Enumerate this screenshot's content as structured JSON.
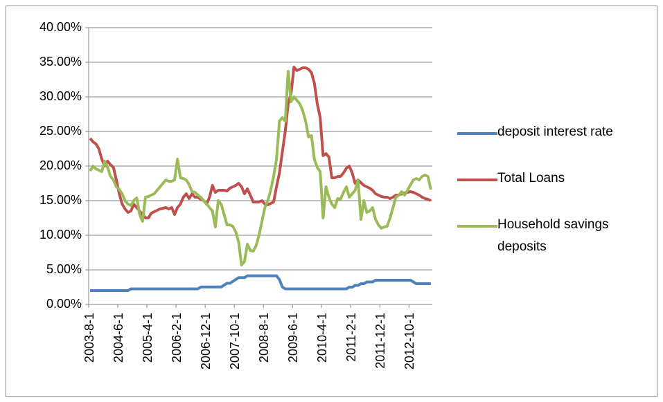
{
  "chart_data": {
    "type": "line",
    "categories": [
      "2003-8-1",
      null,
      null,
      null,
      null,
      null,
      null,
      null,
      null,
      null,
      "2004-6-1",
      null,
      null,
      null,
      null,
      null,
      null,
      null,
      null,
      null,
      "2005-4-1",
      null,
      null,
      null,
      null,
      null,
      null,
      null,
      null,
      null,
      "2006-2-1",
      null,
      null,
      null,
      null,
      null,
      null,
      null,
      null,
      null,
      "2006-12-1",
      null,
      null,
      null,
      null,
      null,
      null,
      null,
      null,
      null,
      "2007-10-1",
      null,
      null,
      null,
      null,
      null,
      null,
      null,
      null,
      null,
      "2008-8-1",
      null,
      null,
      null,
      null,
      null,
      null,
      null,
      null,
      null,
      "2009-6-1",
      null,
      null,
      null,
      null,
      null,
      null,
      null,
      null,
      null,
      "2010-4-1",
      null,
      null,
      null,
      null,
      null,
      null,
      null,
      null,
      null,
      "2011-2-1",
      null,
      null,
      null,
      null,
      null,
      null,
      null,
      null,
      null,
      "2011-12-1",
      null,
      null,
      null,
      null,
      null,
      null,
      null,
      null,
      null,
      "2012-10-1",
      null,
      null,
      null,
      null,
      null,
      null,
      null
    ],
    "series": [
      {
        "name": "deposit interest rate",
        "color": "#4f81bd",
        "values": [
          2,
          2,
          2,
          2,
          2,
          2,
          2,
          2,
          2,
          2,
          2,
          2,
          2,
          2,
          2.25,
          2.25,
          2.25,
          2.25,
          2.25,
          2.25,
          2.25,
          2.25,
          2.25,
          2.25,
          2.25,
          2.25,
          2.25,
          2.25,
          2.25,
          2.25,
          2.25,
          2.25,
          2.25,
          2.25,
          2.25,
          2.25,
          2.25,
          2.25,
          2.52,
          2.52,
          2.52,
          2.52,
          2.52,
          2.52,
          2.52,
          2.52,
          2.79,
          3.06,
          3.06,
          3.33,
          3.6,
          3.87,
          3.87,
          3.87,
          4.14,
          4.14,
          4.14,
          4.14,
          4.14,
          4.14,
          4.14,
          4.14,
          4.14,
          4.14,
          4.14,
          3.6,
          2.52,
          2.25,
          2.25,
          2.25,
          2.25,
          2.25,
          2.25,
          2.25,
          2.25,
          2.25,
          2.25,
          2.25,
          2.25,
          2.25,
          2.25,
          2.25,
          2.25,
          2.25,
          2.25,
          2.25,
          2.25,
          2.25,
          2.25,
          2.5,
          2.5,
          2.75,
          2.75,
          3,
          3,
          3.25,
          3.25,
          3.25,
          3.5,
          3.5,
          3.5,
          3.5,
          3.5,
          3.5,
          3.5,
          3.5,
          3.5,
          3.5,
          3.5,
          3.5,
          3.5,
          3.25,
          3,
          3,
          3,
          3,
          3,
          3
        ]
      },
      {
        "name": "Total Loans",
        "color": "#c0504d",
        "values": [
          24,
          23.5,
          23.2,
          22.5,
          21,
          20,
          20.7,
          20.2,
          19.8,
          18,
          16,
          14.5,
          13.8,
          13.3,
          13.5,
          14.5,
          14,
          13.5,
          13,
          12.5,
          12.5,
          13.2,
          13.4,
          13.6,
          13.8,
          13.9,
          14,
          13.8,
          14,
          13,
          14,
          14.5,
          15.5,
          16,
          15.3,
          16,
          15.5,
          15.5,
          15.2,
          15,
          14.5,
          15.5,
          17.2,
          16.2,
          16.5,
          16.5,
          16.5,
          16.4,
          16.8,
          17,
          17.2,
          17.5,
          17,
          16,
          16.7,
          15.8,
          14.8,
          14.8,
          14.8,
          15,
          14.5,
          14.4,
          14.6,
          14.8,
          17,
          19,
          22,
          25,
          29,
          30.5,
          34.3,
          33.8,
          34,
          34.2,
          34.2,
          34,
          33.5,
          32,
          29,
          27,
          21.5,
          21.8,
          21.3,
          18.3,
          18.3,
          18.5,
          18.5,
          19,
          19.7,
          20,
          19,
          17.5,
          18,
          17.6,
          17.2,
          17,
          16.8,
          16.5,
          16,
          15.8,
          15.6,
          15.5,
          15.5,
          15.3,
          15.5,
          15.8,
          15.8,
          16,
          16.1,
          16.2,
          16.3,
          16.2,
          16,
          15.8,
          15.5,
          15.3,
          15.2,
          15
        ]
      },
      {
        "name": "Household savings deposits",
        "color": "#9bbb59",
        "values": [
          19.3,
          20,
          19.6,
          19.4,
          19.2,
          20.7,
          19.8,
          18.5,
          18,
          17,
          16.6,
          16,
          15,
          14.5,
          14.3,
          15,
          15.4,
          13,
          12,
          15.5,
          15.6,
          15.8,
          16,
          16.5,
          17,
          17.5,
          18,
          17.8,
          17.8,
          18,
          21,
          18.3,
          18.2,
          18,
          17.3,
          16.3,
          16.2,
          15.8,
          15.5,
          15,
          14.5,
          14,
          13.5,
          11.2,
          15,
          14.5,
          13,
          11.5,
          11.5,
          11.3,
          10.5,
          9,
          5.7,
          6.2,
          8.7,
          7.8,
          7.7,
          8.5,
          10,
          12,
          14,
          15,
          16.5,
          18.5,
          21,
          26.5,
          27,
          26.5,
          33.7,
          29.3,
          30,
          29.5,
          29,
          28,
          26.5,
          24.2,
          24.4,
          21,
          19.8,
          19.2,
          12.5,
          17,
          15.5,
          14.5,
          14,
          15.3,
          15.2,
          16.2,
          17,
          15.5,
          16,
          16.5,
          18,
          12.3,
          15,
          13.3,
          13.5,
          14,
          12.3,
          11.5,
          11,
          11.2,
          11.3,
          12.5,
          14,
          15.5,
          15.8,
          16.3,
          15.8,
          16.5,
          17.3,
          18,
          18.2,
          18,
          18.5,
          18.7,
          18.5,
          16.6
        ]
      }
    ],
    "ylim": [
      0,
      40
    ],
    "yticks": [
      {
        "value": 0,
        "label": "0.00%"
      },
      {
        "value": 5,
        "label": "5.00%"
      },
      {
        "value": 10,
        "label": "10.00%"
      },
      {
        "value": 15,
        "label": "15.00%"
      },
      {
        "value": 20,
        "label": "20.00%"
      },
      {
        "value": 25,
        "label": "25.00%"
      },
      {
        "value": 30,
        "label": "30.00%"
      },
      {
        "value": 35,
        "label": "35.00%"
      },
      {
        "value": 40,
        "label": "40.00%"
      }
    ],
    "grid": true,
    "legend": "right"
  }
}
